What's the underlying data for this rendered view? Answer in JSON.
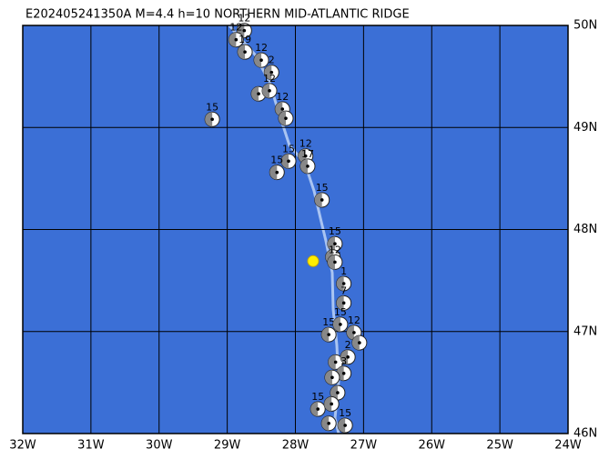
{
  "map": {
    "title": "E202405241350A  M=4.4  h=10  NORTHERN MID-ATLANTIC RIDGE",
    "xlim": [
      -32,
      -24
    ],
    "ylim": [
      46,
      50
    ],
    "xticks": [
      {
        "value": -32,
        "label": "32W"
      },
      {
        "value": -31,
        "label": "31W"
      },
      {
        "value": -30,
        "label": "30W"
      },
      {
        "value": -29,
        "label": "29W"
      },
      {
        "value": -28,
        "label": "28W"
      },
      {
        "value": -27,
        "label": "27W"
      },
      {
        "value": -26,
        "label": "26W"
      },
      {
        "value": -25,
        "label": "25W"
      },
      {
        "value": -24,
        "label": "24W"
      }
    ],
    "yticks": [
      {
        "value": 46,
        "label": "46N"
      },
      {
        "value": 47,
        "label": "47N"
      },
      {
        "value": 48,
        "label": "48N"
      },
      {
        "value": 49,
        "label": "49N"
      },
      {
        "value": 50,
        "label": "50N"
      }
    ],
    "events": [
      {
        "lon": -28.75,
        "lat": 49.95,
        "label": "12"
      },
      {
        "lon": -28.87,
        "lat": 49.86,
        "label": "12"
      },
      {
        "lon": -28.74,
        "lat": 49.74,
        "label": "19"
      },
      {
        "lon": -28.5,
        "lat": 49.66,
        "label": "12"
      },
      {
        "lon": -28.35,
        "lat": 49.54,
        "label": "2"
      },
      {
        "lon": -28.54,
        "lat": 49.33
      },
      {
        "lon": -28.38,
        "lat": 49.36,
        "label": "12"
      },
      {
        "lon": -28.19,
        "lat": 49.18,
        "label": "12"
      },
      {
        "lon": -28.14,
        "lat": 49.09
      },
      {
        "lon": -29.22,
        "lat": 49.08,
        "label": "15"
      },
      {
        "lon": -28.1,
        "lat": 48.67,
        "label": "15"
      },
      {
        "lon": -27.85,
        "lat": 48.72,
        "label": "12"
      },
      {
        "lon": -27.82,
        "lat": 48.62,
        "label": "17"
      },
      {
        "lon": -28.27,
        "lat": 48.56,
        "label": "15"
      },
      {
        "lon": -27.61,
        "lat": 48.29,
        "label": "15"
      },
      {
        "lon": -27.42,
        "lat": 47.86,
        "label": "15"
      },
      {
        "lon": -27.45,
        "lat": 47.73
      },
      {
        "lon": -27.42,
        "lat": 47.68,
        "label": "12"
      },
      {
        "lon": -27.29,
        "lat": 47.47,
        "label": "1"
      },
      {
        "lon": -27.29,
        "lat": 47.28,
        "label": "7"
      },
      {
        "lon": -27.51,
        "lat": 46.97,
        "label": "15"
      },
      {
        "lon": -27.34,
        "lat": 47.07,
        "label": "15"
      },
      {
        "lon": -27.14,
        "lat": 46.99,
        "label": "12"
      },
      {
        "lon": -27.06,
        "lat": 46.89
      },
      {
        "lon": -27.41,
        "lat": 46.7
      },
      {
        "lon": -27.23,
        "lat": 46.75,
        "label": "2"
      },
      {
        "lon": -27.29,
        "lat": 46.59,
        "label": "3"
      },
      {
        "lon": -27.46,
        "lat": 46.55
      },
      {
        "lon": -27.38,
        "lat": 46.4
      },
      {
        "lon": -27.67,
        "lat": 46.24,
        "label": "15"
      },
      {
        "lon": -27.47,
        "lat": 46.29
      },
      {
        "lon": -27.27,
        "lat": 46.08,
        "label": "15"
      },
      {
        "lon": -27.51,
        "lat": 46.1
      }
    ],
    "epicenter": {
      "lon": -27.74,
      "lat": 47.69
    }
  }
}
